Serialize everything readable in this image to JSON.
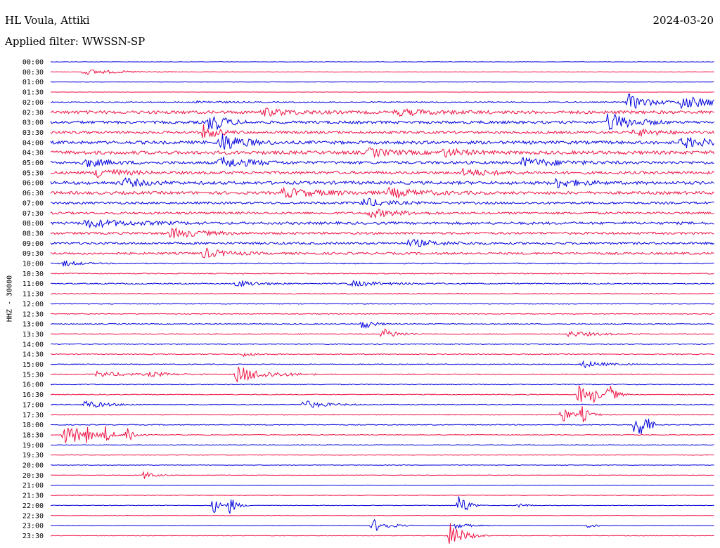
{
  "header": {
    "station": "HL Voula, Attiki",
    "date": "2024-03-20",
    "filter": "Applied filter: WWSSN-SP"
  },
  "chart_data": {
    "type": "line",
    "title": "HL Voula, Attiki",
    "subtitle": "Applied filter: WWSSN-SP",
    "ylabel": "HHZ - 30000",
    "colors": {
      "even": "#0000dd",
      "odd": "#ee1144"
    },
    "rows": [
      "00:00",
      "00:30",
      "01:00",
      "01:30",
      "02:00",
      "02:30",
      "03:00",
      "03:30",
      "04:00",
      "04:30",
      "05:00",
      "05:30",
      "06:00",
      "06:30",
      "07:00",
      "07:30",
      "08:00",
      "08:30",
      "09:00",
      "09:30",
      "10:00",
      "10:30",
      "11:00",
      "11:30",
      "12:00",
      "12:30",
      "13:00",
      "13:30",
      "14:00",
      "14:30",
      "15:00",
      "15:30",
      "16:00",
      "16:30",
      "17:00",
      "17:30",
      "18:00",
      "18:30",
      "19:00",
      "19:30",
      "20:00",
      "20:30",
      "21:00",
      "21:30",
      "22:00",
      "22:30",
      "23:00",
      "23:30"
    ],
    "noise": [
      0.3,
      0.3,
      0.2,
      0.2,
      0.8,
      2.2,
      2.0,
      1.8,
      2.2,
      2.4,
      2.0,
      2.0,
      2.2,
      2.0,
      1.6,
      1.6,
      1.8,
      1.6,
      1.6,
      1.6,
      0.8,
      0.7,
      0.8,
      0.6,
      0.6,
      0.6,
      0.6,
      0.6,
      0.6,
      0.6,
      0.6,
      0.7,
      0.6,
      0.6,
      0.6,
      0.6,
      0.6,
      0.5,
      0.5,
      0.4,
      0.4,
      0.3,
      0.3,
      0.4,
      0.4,
      0.3,
      0.4,
      0.4
    ],
    "events": [
      {
        "row": 1,
        "t": 0.05,
        "amp": 4,
        "dur": 0.05
      },
      {
        "row": 4,
        "t": 0.22,
        "amp": 1.5,
        "dur": 0.04
      },
      {
        "row": 4,
        "t": 0.87,
        "amp": 12,
        "dur": 0.03
      },
      {
        "row": 4,
        "t": 0.95,
        "amp": 9,
        "dur": 0.06
      },
      {
        "row": 5,
        "t": 0.32,
        "amp": 5,
        "dur": 0.04
      },
      {
        "row": 5,
        "t": 0.52,
        "amp": 4,
        "dur": 0.05
      },
      {
        "row": 6,
        "t": 0.24,
        "amp": 15,
        "dur": 0.02
      },
      {
        "row": 6,
        "t": 0.84,
        "amp": 14,
        "dur": 0.03
      },
      {
        "row": 7,
        "t": 0.23,
        "amp": 10,
        "dur": 0.02
      },
      {
        "row": 7,
        "t": 0.88,
        "amp": 6,
        "dur": 0.03
      },
      {
        "row": 8,
        "t": 0.255,
        "amp": 14,
        "dur": 0.03
      },
      {
        "row": 8,
        "t": 0.95,
        "amp": 7,
        "dur": 0.05
      },
      {
        "row": 9,
        "t": 0.48,
        "amp": 6,
        "dur": 0.03
      },
      {
        "row": 9,
        "t": 0.59,
        "amp": 6,
        "dur": 0.03
      },
      {
        "row": 10,
        "t": 0.05,
        "amp": 6,
        "dur": 0.03
      },
      {
        "row": 10,
        "t": 0.255,
        "amp": 8,
        "dur": 0.04
      },
      {
        "row": 10,
        "t": 0.71,
        "amp": 6,
        "dur": 0.05
      },
      {
        "row": 11,
        "t": 0.07,
        "amp": 8,
        "dur": 0.03
      },
      {
        "row": 11,
        "t": 0.62,
        "amp": 5,
        "dur": 0.04
      },
      {
        "row": 12,
        "t": 0.11,
        "amp": 6,
        "dur": 0.03
      },
      {
        "row": 12,
        "t": 0.76,
        "amp": 7,
        "dur": 0.03
      },
      {
        "row": 13,
        "t": 0.35,
        "amp": 6,
        "dur": 0.06
      },
      {
        "row": 13,
        "t": 0.51,
        "amp": 6,
        "dur": 0.05
      },
      {
        "row": 14,
        "t": 0.47,
        "amp": 7,
        "dur": 0.03
      },
      {
        "row": 15,
        "t": 0.48,
        "amp": 6,
        "dur": 0.04
      },
      {
        "row": 16,
        "t": 0.05,
        "amp": 6,
        "dur": 0.06
      },
      {
        "row": 17,
        "t": 0.18,
        "amp": 7,
        "dur": 0.04
      },
      {
        "row": 18,
        "t": 0.54,
        "amp": 5,
        "dur": 0.04
      },
      {
        "row": 19,
        "t": 0.23,
        "amp": 7,
        "dur": 0.03
      },
      {
        "row": 20,
        "t": 0.02,
        "amp": 4,
        "dur": 0.02
      },
      {
        "row": 22,
        "t": 0.28,
        "amp": 5,
        "dur": 0.03
      },
      {
        "row": 22,
        "t": 0.45,
        "amp": 4,
        "dur": 0.05
      },
      {
        "row": 26,
        "t": 0.47,
        "amp": 8,
        "dur": 0.015
      },
      {
        "row": 27,
        "t": 0.5,
        "amp": 8,
        "dur": 0.02
      },
      {
        "row": 27,
        "t": 0.78,
        "amp": 4,
        "dur": 0.04
      },
      {
        "row": 29,
        "t": 0.29,
        "amp": 3,
        "dur": 0.02
      },
      {
        "row": 30,
        "t": 0.8,
        "amp": 5,
        "dur": 0.03
      },
      {
        "row": 31,
        "t": 0.07,
        "amp": 4,
        "dur": 0.04
      },
      {
        "row": 31,
        "t": 0.28,
        "amp": 12,
        "dur": 0.04
      },
      {
        "row": 31,
        "t": 0.15,
        "amp": 3,
        "dur": 0.03
      },
      {
        "row": 33,
        "t": 0.795,
        "amp": 16,
        "dur": 0.01
      },
      {
        "row": 33,
        "t": 0.815,
        "amp": 14,
        "dur": 0.01
      },
      {
        "row": 33,
        "t": 0.84,
        "amp": 16,
        "dur": 0.01
      },
      {
        "row": 34,
        "t": 0.05,
        "amp": 6,
        "dur": 0.03
      },
      {
        "row": 34,
        "t": 0.38,
        "amp": 6,
        "dur": 0.03
      },
      {
        "row": 35,
        "t": 0.77,
        "amp": 14,
        "dur": 0.01
      },
      {
        "row": 35,
        "t": 0.8,
        "amp": 13,
        "dur": 0.01
      },
      {
        "row": 36,
        "t": 0.88,
        "amp": 18,
        "dur": 0.01
      },
      {
        "row": 36,
        "t": 0.89,
        "amp": 18,
        "dur": 0.01
      },
      {
        "row": 37,
        "t": 0.02,
        "amp": 18,
        "dur": 0.01
      },
      {
        "row": 37,
        "t": 0.035,
        "amp": 14,
        "dur": 0.01
      },
      {
        "row": 37,
        "t": 0.055,
        "amp": 12,
        "dur": 0.01
      },
      {
        "row": 37,
        "t": 0.08,
        "amp": 16,
        "dur": 0.01
      },
      {
        "row": 37,
        "t": 0.115,
        "amp": 16,
        "dur": 0.01
      },
      {
        "row": 41,
        "t": 0.14,
        "amp": 6,
        "dur": 0.015
      },
      {
        "row": 44,
        "t": 0.245,
        "amp": 12,
        "dur": 0.01
      },
      {
        "row": 44,
        "t": 0.27,
        "amp": 12,
        "dur": 0.01
      },
      {
        "row": 44,
        "t": 0.615,
        "amp": 18,
        "dur": 0.012
      },
      {
        "row": 44,
        "t": 0.705,
        "amp": 4,
        "dur": 0.01
      },
      {
        "row": 46,
        "t": 0.485,
        "amp": 10,
        "dur": 0.02
      },
      {
        "row": 46,
        "t": 0.61,
        "amp": 4,
        "dur": 0.02
      },
      {
        "row": 46,
        "t": 0.81,
        "amp": 3,
        "dur": 0.01
      },
      {
        "row": 47,
        "t": 0.6,
        "amp": 20,
        "dur": 0.02
      }
    ]
  }
}
